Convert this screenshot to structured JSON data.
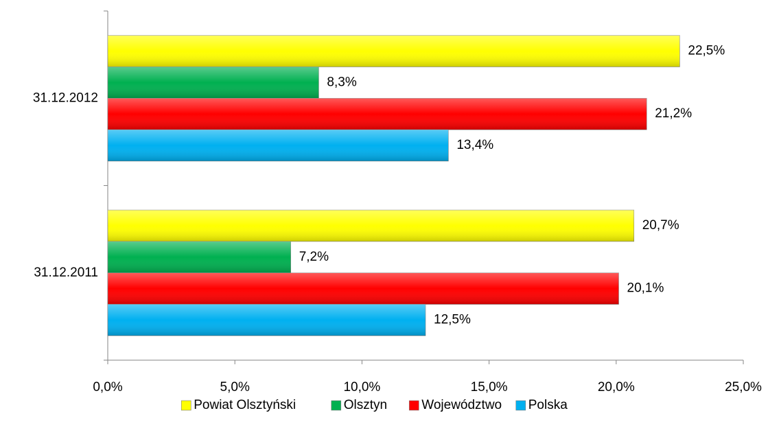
{
  "chart_data": {
    "type": "hbar",
    "categories": [
      "31.12.2012",
      "31.12.2011"
    ],
    "series": [
      {
        "name": "Powiat Olsztyński",
        "color": "#ffff00",
        "values": [
          22.5,
          20.7
        ],
        "value_labels": [
          "22,5%",
          "20,7%"
        ]
      },
      {
        "name": "Olsztyn",
        "color": "#00b050",
        "values": [
          8.3,
          7.2
        ],
        "value_labels": [
          "8,3%",
          "7,2%"
        ]
      },
      {
        "name": "Województwo",
        "color": "#ff0000",
        "values": [
          21.2,
          20.1
        ],
        "value_labels": [
          "21,2%",
          "20,1%"
        ]
      },
      {
        "name": "Polska",
        "color": "#00b0f0",
        "values": [
          13.4,
          12.5
        ],
        "value_labels": [
          "13,4%",
          "12,5%"
        ]
      }
    ],
    "xlim": [
      0,
      25
    ],
    "xticks": [
      {
        "value": 0,
        "label": "0,0%"
      },
      {
        "value": 5,
        "label": "5,0%"
      },
      {
        "value": 10,
        "label": "10,0%"
      },
      {
        "value": 15,
        "label": "15,0%"
      },
      {
        "value": 20,
        "label": "20,0%"
      },
      {
        "value": 25,
        "label": "25,0%"
      }
    ],
    "legend": "bottom"
  }
}
